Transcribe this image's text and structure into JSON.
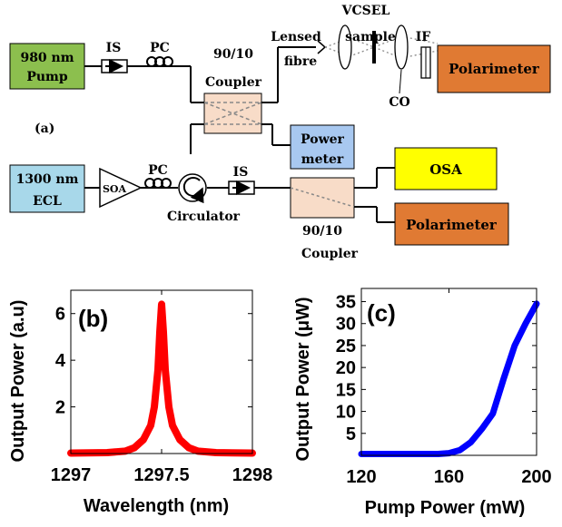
{
  "colors": {
    "pump_box": "#8cbf4e",
    "ecl_box": "#a8d8ea",
    "power_meter_box": "#a8c8f0",
    "polarimeter_box": "#e07a33",
    "osa_box": "#ffff00",
    "coupler_box": "#f8dcc8",
    "trace_b": "#ff0000",
    "trace_c": "#0000ff"
  },
  "setup": {
    "panel_label": "(a)",
    "pump_label_line1": "980 nm",
    "pump_label_line2": "Pump",
    "ecl_label_line1": "1300 nm",
    "ecl_label_line2": "ECL",
    "is_label_top": "IS",
    "pc_label_top": "PC",
    "coupler_top_line1": "90/10",
    "coupler_top_line2": "Coupler",
    "lensed_fibre_line1": "Lensed",
    "lensed_fibre_line2": "fibre",
    "vcsel_line1": "VCSEL",
    "vcsel_line2": "sample",
    "if_label": "IF",
    "co_label": "CO",
    "polarimeter_top": "Polarimeter",
    "power_meter_line1": "Power",
    "power_meter_line2": "meter",
    "soa_label": "SOA",
    "pc_label_bottom": "PC",
    "circulator_label": "Circulator",
    "is_label_bottom": "IS",
    "osa_label": "OSA",
    "polarimeter_bottom": "Polarimeter",
    "coupler_bottom_line1": "90/10",
    "coupler_bottom_line2": "Coupler"
  },
  "chart_data": [
    {
      "type": "line",
      "panel_label": "(b)",
      "xlabel": "Wavelength (nm)",
      "ylabel": "Output Power (a.u)",
      "xlim": [
        1297,
        1298
      ],
      "ylim": [
        0,
        7
      ],
      "xticks": [
        1297,
        1297.5,
        1298
      ],
      "xtick_labels": [
        "1297",
        "1297.5",
        "1298"
      ],
      "yticks": [
        2,
        4,
        6
      ],
      "ytick_labels": [
        "2",
        "4",
        "6"
      ],
      "series": [
        {
          "x": [
            1297.0,
            1297.2,
            1297.3,
            1297.35,
            1297.4,
            1297.44,
            1297.46,
            1297.48,
            1297.49,
            1297.5,
            1297.51,
            1297.52,
            1297.54,
            1297.56,
            1297.6,
            1297.65,
            1297.7,
            1297.8,
            1298.0
          ],
          "y": [
            0.02,
            0.04,
            0.1,
            0.25,
            0.6,
            1.2,
            2.0,
            3.6,
            5.2,
            6.4,
            5.2,
            3.6,
            2.0,
            1.2,
            0.6,
            0.25,
            0.1,
            0.04,
            0.02
          ]
        }
      ]
    },
    {
      "type": "line",
      "panel_label": "(c)",
      "xlabel": "Pump Power (mW)",
      "ylabel": "Output Power (μW)",
      "xlim": [
        120,
        200
      ],
      "ylim": [
        0,
        38
      ],
      "xticks": [
        120,
        160,
        200
      ],
      "xtick_labels": [
        "120",
        "160",
        "200"
      ],
      "yticks": [
        5,
        10,
        15,
        20,
        25,
        30,
        35
      ],
      "ytick_labels": [
        "5",
        "10",
        "15",
        "20",
        "25",
        "30",
        "35"
      ],
      "series": [
        {
          "x": [
            120,
            130,
            140,
            150,
            155,
            160,
            165,
            170,
            175,
            180,
            185,
            190,
            195,
            200
          ],
          "y": [
            0.3,
            0.3,
            0.3,
            0.3,
            0.3,
            0.5,
            1.2,
            3.0,
            6.0,
            9.5,
            17.5,
            25.0,
            30.0,
            34.5
          ]
        }
      ]
    }
  ]
}
